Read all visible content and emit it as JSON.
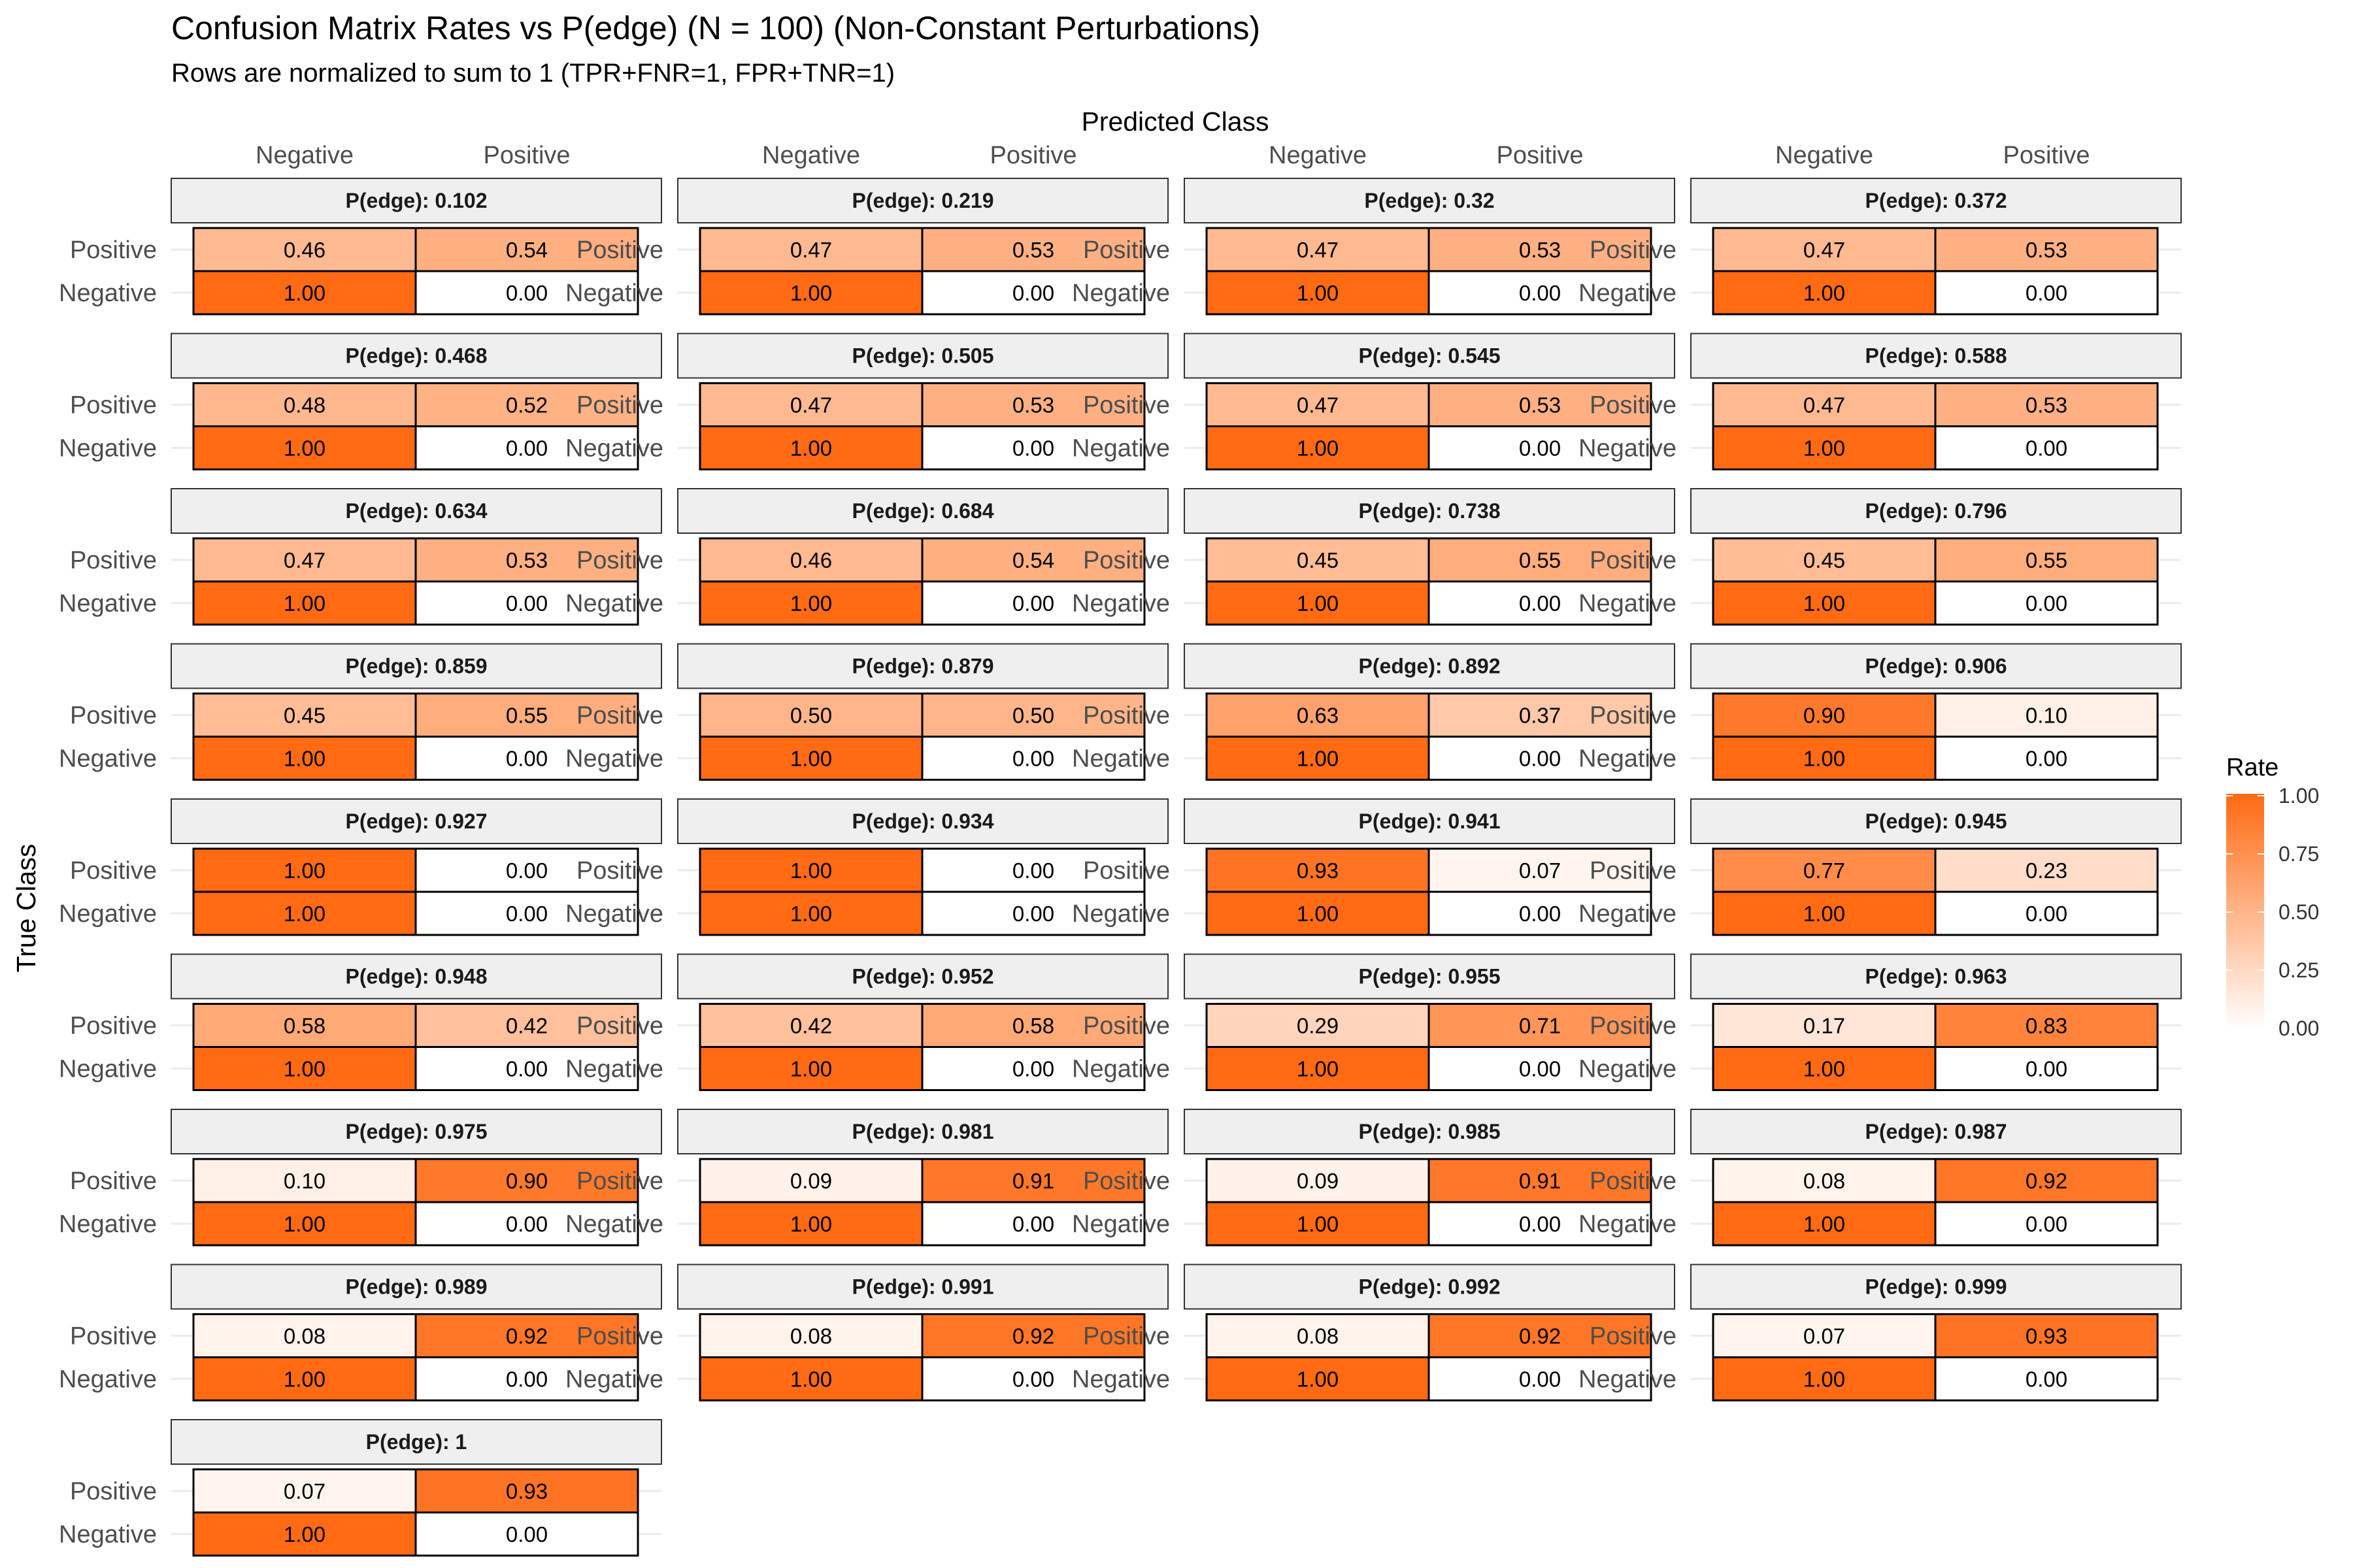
{
  "chart_data": {
    "type": "heatmap",
    "title": "Confusion Matrix Rates vs P(edge) (N = 100) (Non-Constant Perturbations)",
    "subtitle": "Rows are normalized to sum to 1 (TPR+FNR=1, FPR+TNR=1)",
    "xlabel": "Predicted Class",
    "ylabel": "True Class",
    "x_categories": [
      "Negative",
      "Positive"
    ],
    "y_categories": [
      "Positive",
      "Negative"
    ],
    "facet_label_prefix": "P(edge): ",
    "legend": {
      "title": "Rate",
      "ticks": [
        "1.00",
        "0.75",
        "0.50",
        "0.25",
        "0.00"
      ],
      "low_color": "#FFFFFF",
      "high_color": "#FF6A13",
      "position": "right"
    },
    "panels": [
      {
        "p_edge": "0.102",
        "positive": [
          0.46,
          0.54
        ],
        "negative": [
          1.0,
          0.0
        ]
      },
      {
        "p_edge": "0.219",
        "positive": [
          0.47,
          0.53
        ],
        "negative": [
          1.0,
          0.0
        ]
      },
      {
        "p_edge": "0.32",
        "positive": [
          0.47,
          0.53
        ],
        "negative": [
          1.0,
          0.0
        ]
      },
      {
        "p_edge": "0.372",
        "positive": [
          0.47,
          0.53
        ],
        "negative": [
          1.0,
          0.0
        ]
      },
      {
        "p_edge": "0.468",
        "positive": [
          0.48,
          0.52
        ],
        "negative": [
          1.0,
          0.0
        ]
      },
      {
        "p_edge": "0.505",
        "positive": [
          0.47,
          0.53
        ],
        "negative": [
          1.0,
          0.0
        ]
      },
      {
        "p_edge": "0.545",
        "positive": [
          0.47,
          0.53
        ],
        "negative": [
          1.0,
          0.0
        ]
      },
      {
        "p_edge": "0.588",
        "positive": [
          0.47,
          0.53
        ],
        "negative": [
          1.0,
          0.0
        ]
      },
      {
        "p_edge": "0.634",
        "positive": [
          0.47,
          0.53
        ],
        "negative": [
          1.0,
          0.0
        ]
      },
      {
        "p_edge": "0.684",
        "positive": [
          0.46,
          0.54
        ],
        "negative": [
          1.0,
          0.0
        ]
      },
      {
        "p_edge": "0.738",
        "positive": [
          0.45,
          0.55
        ],
        "negative": [
          1.0,
          0.0
        ]
      },
      {
        "p_edge": "0.796",
        "positive": [
          0.45,
          0.55
        ],
        "negative": [
          1.0,
          0.0
        ]
      },
      {
        "p_edge": "0.859",
        "positive": [
          0.45,
          0.55
        ],
        "negative": [
          1.0,
          0.0
        ]
      },
      {
        "p_edge": "0.879",
        "positive": [
          0.5,
          0.5
        ],
        "negative": [
          1.0,
          0.0
        ]
      },
      {
        "p_edge": "0.892",
        "positive": [
          0.63,
          0.37
        ],
        "negative": [
          1.0,
          0.0
        ]
      },
      {
        "p_edge": "0.906",
        "positive": [
          0.9,
          0.1
        ],
        "negative": [
          1.0,
          0.0
        ]
      },
      {
        "p_edge": "0.927",
        "positive": [
          1.0,
          0.0
        ],
        "negative": [
          1.0,
          0.0
        ]
      },
      {
        "p_edge": "0.934",
        "positive": [
          1.0,
          0.0
        ],
        "negative": [
          1.0,
          0.0
        ]
      },
      {
        "p_edge": "0.941",
        "positive": [
          0.93,
          0.07
        ],
        "negative": [
          1.0,
          0.0
        ]
      },
      {
        "p_edge": "0.945",
        "positive": [
          0.77,
          0.23
        ],
        "negative": [
          1.0,
          0.0
        ]
      },
      {
        "p_edge": "0.948",
        "positive": [
          0.58,
          0.42
        ],
        "negative": [
          1.0,
          0.0
        ]
      },
      {
        "p_edge": "0.952",
        "positive": [
          0.42,
          0.58
        ],
        "negative": [
          1.0,
          0.0
        ]
      },
      {
        "p_edge": "0.955",
        "positive": [
          0.29,
          0.71
        ],
        "negative": [
          1.0,
          0.0
        ]
      },
      {
        "p_edge": "0.963",
        "positive": [
          0.17,
          0.83
        ],
        "negative": [
          1.0,
          0.0
        ]
      },
      {
        "p_edge": "0.975",
        "positive": [
          0.1,
          0.9
        ],
        "negative": [
          1.0,
          0.0
        ]
      },
      {
        "p_edge": "0.981",
        "positive": [
          0.09,
          0.91
        ],
        "negative": [
          1.0,
          0.0
        ]
      },
      {
        "p_edge": "0.985",
        "positive": [
          0.09,
          0.91
        ],
        "negative": [
          1.0,
          0.0
        ]
      },
      {
        "p_edge": "0.987",
        "positive": [
          0.08,
          0.92
        ],
        "negative": [
          1.0,
          0.0
        ]
      },
      {
        "p_edge": "0.989",
        "positive": [
          0.08,
          0.92
        ],
        "negative": [
          1.0,
          0.0
        ]
      },
      {
        "p_edge": "0.991",
        "positive": [
          0.08,
          0.92
        ],
        "negative": [
          1.0,
          0.0
        ]
      },
      {
        "p_edge": "0.992",
        "positive": [
          0.08,
          0.92
        ],
        "negative": [
          1.0,
          0.0
        ]
      },
      {
        "p_edge": "0.999",
        "positive": [
          0.07,
          0.93
        ],
        "negative": [
          1.0,
          0.0
        ]
      },
      {
        "p_edge": "1",
        "positive": [
          0.07,
          0.93
        ],
        "negative": [
          1.0,
          0.0
        ]
      }
    ]
  }
}
